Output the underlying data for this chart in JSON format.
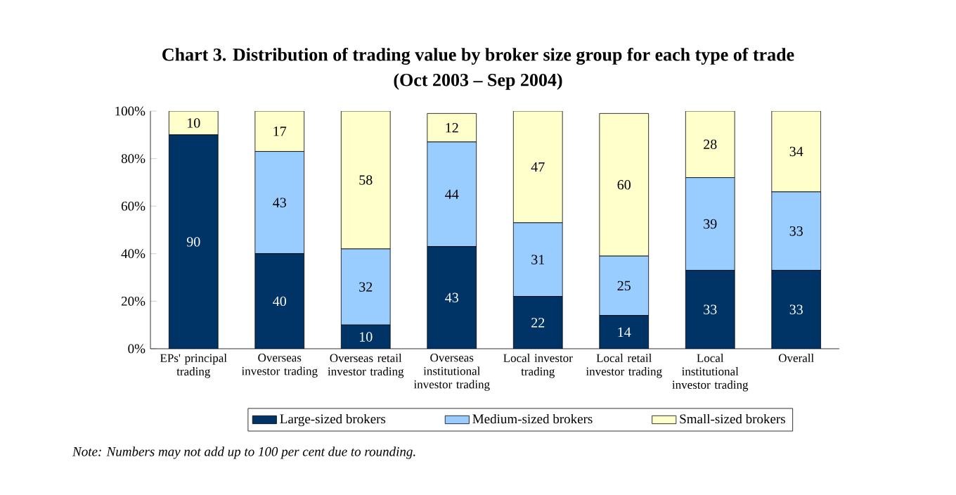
{
  "chart_data": {
    "type": "bar",
    "stacked": true,
    "title": "Chart 3. Distribution of trading value by broker size group for each type of trade",
    "subtitle": "(Oct 2003 – Sep 2004)",
    "categories": [
      "EPs' principal trading",
      "Overseas investor trading",
      "Overseas retail investor trading",
      "Overseas institutional investor trading",
      "Local investor trading",
      "Local retail investor trading",
      "Local institutional investor trading",
      "Overall"
    ],
    "series": [
      {
        "name": "Large-sized brokers",
        "color": "#003366",
        "values": [
          90,
          40,
          10,
          43,
          22,
          14,
          33,
          33
        ],
        "value_labels": [
          "90",
          "40",
          "10",
          "43",
          "22",
          "14",
          "33",
          "33"
        ]
      },
      {
        "name": "Medium-sized brokers",
        "color": "#99ccff",
        "values": [
          0,
          43,
          32,
          44,
          31,
          25,
          39,
          33
        ],
        "value_labels": [
          null,
          "43",
          "32",
          "44",
          "31",
          "25",
          "39",
          "33"
        ]
      },
      {
        "name": "Small-sized brokers",
        "color": "#ffffcc",
        "values": [
          10,
          17,
          58,
          12,
          47,
          60,
          28,
          34
        ],
        "value_labels": [
          "10",
          "17",
          "58",
          "12",
          "47",
          "60",
          "28",
          "34"
        ]
      }
    ],
    "ylim": [
      0,
      100
    ],
    "yticks": [
      {
        "value": 0,
        "label": "0%"
      },
      {
        "value": 20,
        "label": "20%"
      },
      {
        "value": 40,
        "label": "40%"
      },
      {
        "value": 60,
        "label": "60%"
      },
      {
        "value": 80,
        "label": "80%"
      },
      {
        "value": 100,
        "label": "100%"
      }
    ],
    "legend": "bottom",
    "annotations": [
      "Note: Numbers may not add up to 100 per cent due to rounding."
    ]
  }
}
